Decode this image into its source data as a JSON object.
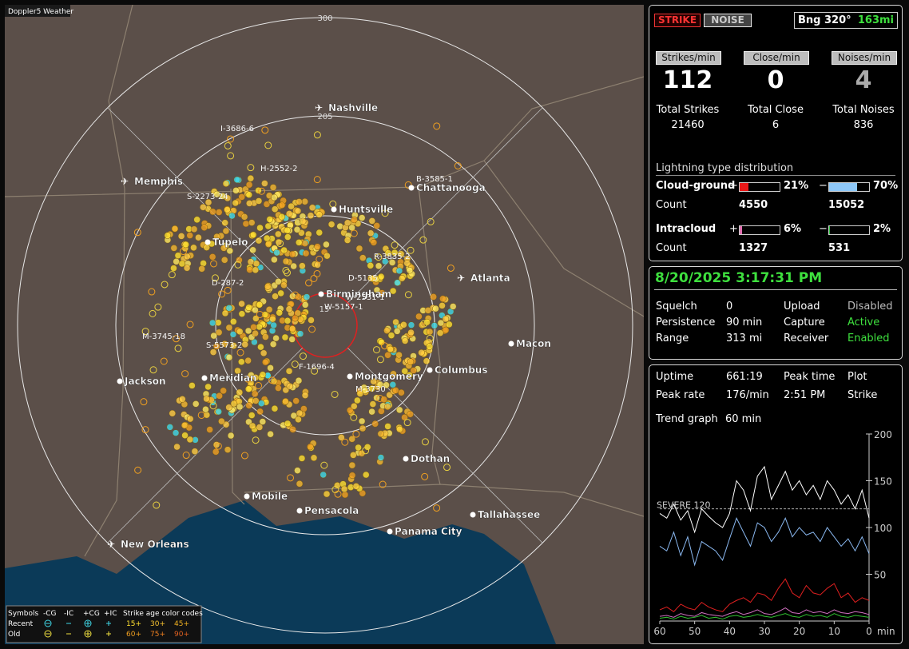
{
  "app_title": "Doppler5 Weather",
  "map": {
    "ring_labels": [
      300,
      205,
      15
    ],
    "cities": [
      {
        "label": "Nashville",
        "airport": true
      },
      {
        "label": "Memphis",
        "airport": true
      },
      {
        "label": "Chattanooga",
        "airport": false
      },
      {
        "label": "Huntsville",
        "airport": false
      },
      {
        "label": "Tupelo",
        "airport": false
      },
      {
        "label": "Atlanta",
        "airport": true
      },
      {
        "label": "Birmingham",
        "airport": false
      },
      {
        "label": "Macon",
        "airport": false
      },
      {
        "label": "Jackson",
        "airport": false
      },
      {
        "label": "Meridian",
        "airport": false
      },
      {
        "label": "Montgomery",
        "airport": false
      },
      {
        "label": "Columbus",
        "airport": false
      },
      {
        "label": "Dothan",
        "airport": false
      },
      {
        "label": "Mobile",
        "airport": false
      },
      {
        "label": "Pensacola",
        "airport": false
      },
      {
        "label": "Tallahassee",
        "airport": false
      },
      {
        "label": "Panama City",
        "airport": false
      },
      {
        "label": "New Orleans",
        "airport": true
      }
    ],
    "storm_labels": [
      "I-3686-6",
      "H-2552-2",
      "S-2273-24",
      "B-3585-1",
      "R-3835-2",
      "D-5135",
      "D-287-2",
      "W-2531-1",
      "W-5157-1",
      "M-3745-18",
      "S-5573-2",
      "F-1696-4",
      "M-3730"
    ],
    "legend": {
      "header": [
        "Symbols",
        "-CG",
        "-IC",
        "+CG",
        "+IC",
        "Strike age color codes"
      ],
      "rows": [
        {
          "label": "Recent",
          "ages": [
            "15+",
            "30+",
            "45+"
          ]
        },
        {
          "label": "Old",
          "ages": [
            "60+",
            "75+",
            "90+"
          ]
        }
      ]
    }
  },
  "status": {
    "modes": [
      "STRIKE",
      "NOISE"
    ],
    "bearing": "Bng 320°",
    "distance": "163mi"
  },
  "rates": [
    {
      "label": "Strikes/min",
      "value": 112,
      "total_label": "Total Strikes",
      "total": 21460
    },
    {
      "label": "Close/min",
      "value": 0,
      "total_label": "Total Close",
      "total": 6
    },
    {
      "label": "Noises/min",
      "value": 4,
      "total_label": "Total Noises",
      "total": 836
    }
  ],
  "distribution": {
    "title": "Lightning type distribution",
    "signs": [
      "+",
      "−"
    ],
    "count_label": "Count",
    "groups": [
      {
        "name": "Cloud-ground",
        "plus": {
          "value": 21,
          "label": "21%",
          "color": "#e81818"
        },
        "minus": {
          "value": 70,
          "label": "70%",
          "color": "#8ec8f8"
        },
        "counts": [
          4550,
          15052
        ]
      },
      {
        "name": "Intracloud",
        "plus": {
          "value": 6,
          "label": "6%",
          "color": "#e070b0"
        },
        "minus": {
          "value": 2,
          "label": "2%",
          "color": "#30c040"
        },
        "counts": [
          1327,
          531
        ]
      }
    ]
  },
  "datetime": "8/20/2025 3:17:31 PM",
  "settings": [
    [
      "Squelch",
      0,
      "Upload",
      "Disabled"
    ],
    [
      "Persistence",
      "90 min",
      "Capture",
      "Active"
    ],
    [
      "Range",
      "313 mi",
      "Receiver",
      "Enabled"
    ]
  ],
  "stats": [
    [
      "Uptime",
      "661:19",
      "Peak time",
      "Plot"
    ],
    [
      "Peak rate",
      "176/min",
      "2:51 PM",
      "Strike"
    ]
  ],
  "trend": {
    "label": "Trend graph",
    "span": "60 min"
  },
  "chart_data": {
    "type": "line",
    "x": [
      60,
      58,
      56,
      54,
      52,
      50,
      48,
      46,
      44,
      42,
      40,
      38,
      36,
      34,
      32,
      30,
      28,
      26,
      24,
      22,
      20,
      18,
      16,
      14,
      12,
      10,
      8,
      6,
      4,
      2,
      0
    ],
    "xlim": [
      60,
      0
    ],
    "xticks": [
      60,
      50,
      40,
      30,
      20,
      10,
      0
    ],
    "x_unit": "min",
    "ylim": [
      0,
      200
    ],
    "yticks": [
      200,
      150,
      100,
      50
    ],
    "threshold": {
      "value": 120,
      "label": "SEVERE 120"
    },
    "series": [
      {
        "color": "#ffffff",
        "values": [
          115,
          110,
          125,
          108,
          118,
          95,
          120,
          112,
          105,
          100,
          115,
          150,
          140,
          118,
          155,
          165,
          130,
          145,
          160,
          140,
          150,
          135,
          145,
          130,
          150,
          140,
          125,
          135,
          120,
          140,
          110
        ]
      },
      {
        "color": "#8ab8f0",
        "values": [
          80,
          75,
          95,
          70,
          90,
          60,
          85,
          80,
          75,
          65,
          88,
          110,
          95,
          80,
          105,
          100,
          85,
          95,
          110,
          90,
          100,
          92,
          95,
          85,
          100,
          90,
          80,
          88,
          75,
          90,
          72
        ]
      },
      {
        "color": "#e02020",
        "values": [
          12,
          15,
          10,
          18,
          14,
          12,
          20,
          15,
          12,
          10,
          18,
          22,
          25,
          20,
          30,
          28,
          22,
          35,
          45,
          30,
          25,
          38,
          30,
          28,
          35,
          40,
          25,
          30,
          20,
          25,
          22
        ]
      },
      {
        "color": "#d070c0",
        "values": [
          5,
          6,
          4,
          8,
          6,
          5,
          9,
          7,
          6,
          5,
          8,
          10,
          7,
          9,
          12,
          8,
          7,
          10,
          14,
          9,
          8,
          12,
          9,
          10,
          8,
          12,
          9,
          8,
          10,
          9,
          7
        ]
      },
      {
        "color": "#30c030",
        "values": [
          3,
          4,
          2,
          5,
          3,
          4,
          6,
          3,
          4,
          2,
          5,
          6,
          4,
          5,
          7,
          5,
          4,
          6,
          8,
          5,
          4,
          7,
          5,
          6,
          4,
          8,
          5,
          4,
          6,
          5,
          4
        ]
      }
    ]
  }
}
